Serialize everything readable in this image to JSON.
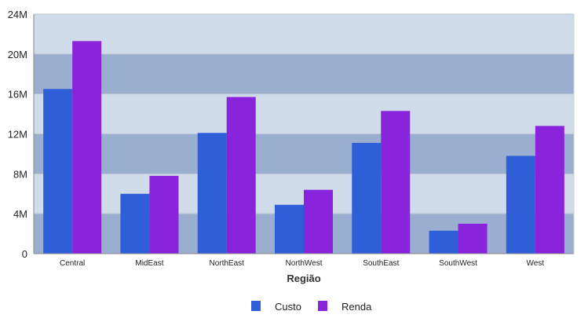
{
  "chart_data": {
    "type": "bar",
    "title": "",
    "xlabel": "Região",
    "ylabel": "",
    "categories": [
      "Central",
      "MidEast",
      "NorthEast",
      "NorthWest",
      "SouthEast",
      "SouthWest",
      "West"
    ],
    "series": [
      {
        "name": "Custo",
        "values": [
          16.5,
          6.0,
          12.1,
          4.9,
          11.1,
          2.3,
          9.8
        ]
      },
      {
        "name": "Renda",
        "values": [
          21.3,
          7.8,
          15.7,
          6.4,
          14.3,
          3.0,
          12.8
        ]
      }
    ],
    "yticks": [
      {
        "value": 0,
        "label": "0"
      },
      {
        "value": 4,
        "label": "4M"
      },
      {
        "value": 8,
        "label": "8M"
      },
      {
        "value": 12,
        "label": "12M"
      },
      {
        "value": 16,
        "label": "16M"
      },
      {
        "value": 20,
        "label": "20M"
      },
      {
        "value": 24,
        "label": "24M"
      }
    ],
    "ylim": [
      0,
      24
    ],
    "value_unit": "millions",
    "grid": true,
    "band_colors": [
      "#9aaed0",
      "#d0dce9"
    ],
    "series_colors": [
      "#2e5ed8",
      "#8a24dc"
    ],
    "legend_position": "bottom-center"
  }
}
